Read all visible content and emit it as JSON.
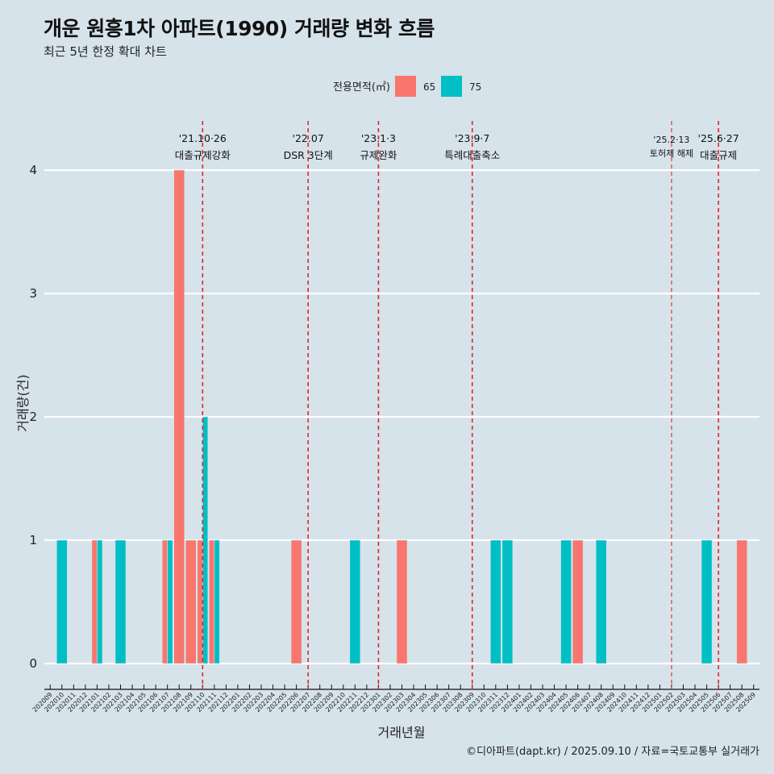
{
  "title": "개운 원흥1차 아파트(1990) 거래량 변화 흐름",
  "subtitle": "최근 5년 한정 확대 차트",
  "caption": "©디아파트(dapt.kr) / 2025.09.10 / 자료=국토교통부 실거래가",
  "colors": {
    "65": "#f8766d",
    "75": "#00bfc4",
    "background": "#d6e3ea",
    "vline": "#e8222a"
  },
  "chart_data": {
    "type": "bar",
    "xlabel": "거래년월",
    "ylabel": "거래량(건)",
    "ylim": [
      -0.2,
      4.4
    ],
    "yticks": [
      0,
      1,
      2,
      3,
      4
    ],
    "legend": {
      "title": "전용면적(㎡)",
      "position": "top",
      "entries": [
        "65",
        "75"
      ]
    },
    "categories": [
      "202009",
      "202010",
      "202011",
      "202012",
      "202101",
      "202102",
      "202103",
      "202104",
      "202105",
      "202106",
      "202107",
      "202108",
      "202109",
      "202110",
      "202111",
      "202112",
      "202201",
      "202202",
      "202203",
      "202204",
      "202205",
      "202206",
      "202207",
      "202208",
      "202209",
      "202210",
      "202211",
      "202212",
      "202301",
      "202302",
      "202303",
      "202304",
      "202305",
      "202306",
      "202307",
      "202308",
      "202309",
      "202310",
      "202311",
      "202312",
      "202401",
      "202402",
      "202403",
      "202404",
      "202405",
      "202406",
      "202407",
      "202408",
      "202409",
      "202410",
      "202411",
      "202412",
      "202501",
      "202502",
      "202503",
      "202504",
      "202505",
      "202506",
      "202507",
      "202508",
      "202509"
    ],
    "series": [
      {
        "name": "65",
        "points": {
          "202101": 1,
          "202107": 1,
          "202108": 4,
          "202109": 1,
          "202110": 1,
          "202111": 1,
          "202206": 1,
          "202303": 1,
          "202406": 1,
          "202508": 1
        }
      },
      {
        "name": "75",
        "points": {
          "202010": 1,
          "202101": 1,
          "202103": 1,
          "202107": 1,
          "202110": 2,
          "202111": 1,
          "202211": 1,
          "202311": 1,
          "202312": 1,
          "202405": 1,
          "202408": 1,
          "202505": 1
        }
      }
    ],
    "annotations": [
      {
        "x": "202110",
        "date": "'21.10·26",
        "label": "대출규제강화"
      },
      {
        "x": "202207",
        "date": "'22.07",
        "label": "DSR 3단계"
      },
      {
        "x": "202301",
        "date": "'23.1·3",
        "label": "규제완화"
      },
      {
        "x": "202309",
        "date": "'23.9·7",
        "label": "특례대출축소"
      },
      {
        "x": "202502",
        "date": "'25.2·13",
        "label": "토허제 해제",
        "small": true
      },
      {
        "x": "202506",
        "date": "'25.6·27",
        "label": "대출규제"
      }
    ]
  }
}
